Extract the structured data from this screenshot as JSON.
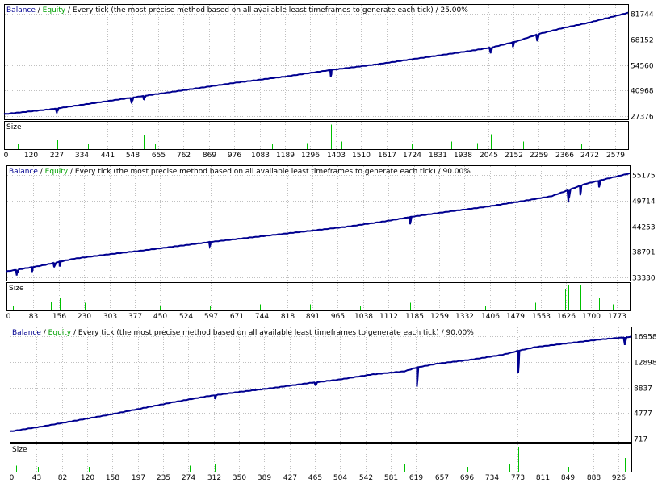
{
  "legend": {
    "balance": "Balance",
    "equity": "Equity",
    "separator": " / "
  },
  "colors": {
    "balance": "#000090",
    "equity": "#00a000",
    "size": "#00c000",
    "grid": "#c0c0c0"
  },
  "chart_data": [
    {
      "type": "line",
      "legend_text": "Every tick (the most precise method based on all available least timeframes to generate each tick) / 25.00%",
      "size_label": "Size",
      "y_ticks": [
        "81744",
        "68152",
        "54560",
        "40968",
        "27376"
      ],
      "ylim": [
        27376,
        81744
      ],
      "x_ticks": [
        "0",
        "120",
        "227",
        "334",
        "441",
        "548",
        "655",
        "762",
        "869",
        "976",
        "1083",
        "1189",
        "1296",
        "1403",
        "1510",
        "1617",
        "1724",
        "1831",
        "1938",
        "2045",
        "2152",
        "2259",
        "2366",
        "2472",
        "2579"
      ],
      "xlim": [
        0,
        2680
      ],
      "series": [
        {
          "x": [
            0,
            200,
            400,
            600,
            800,
            1000,
            1200,
            1400,
            1600,
            1800,
            2000,
            2100,
            2200,
            2300,
            2400,
            2500,
            2600,
            2680
          ],
          "values": [
            28000,
            30500,
            34000,
            37500,
            41000,
            44500,
            47500,
            51000,
            54000,
            57500,
            61000,
            63000,
            66000,
            70000,
            73000,
            75500,
            78500,
            81000
          ]
        }
      ],
      "dips": [
        {
          "x": 227,
          "depth": 2500
        },
        {
          "x": 548,
          "depth": 3000
        },
        {
          "x": 600,
          "depth": 2000
        },
        {
          "x": 1403,
          "depth": 3500
        },
        {
          "x": 2090,
          "depth": 3000
        },
        {
          "x": 2185,
          "depth": 2500
        },
        {
          "x": 2290,
          "depth": 3500
        }
      ],
      "size_bars": [
        {
          "x": 60,
          "h": 0.2
        },
        {
          "x": 230,
          "h": 0.35
        },
        {
          "x": 360,
          "h": 0.2
        },
        {
          "x": 441,
          "h": 0.25
        },
        {
          "x": 530,
          "h": 0.95
        },
        {
          "x": 548,
          "h": 0.3
        },
        {
          "x": 600,
          "h": 0.55
        },
        {
          "x": 650,
          "h": 0.2
        },
        {
          "x": 870,
          "h": 0.2
        },
        {
          "x": 1000,
          "h": 0.25
        },
        {
          "x": 1150,
          "h": 0.2
        },
        {
          "x": 1270,
          "h": 0.35
        },
        {
          "x": 1300,
          "h": 0.25
        },
        {
          "x": 1403,
          "h": 0.98
        },
        {
          "x": 1450,
          "h": 0.3
        },
        {
          "x": 1750,
          "h": 0.2
        },
        {
          "x": 1920,
          "h": 0.3
        },
        {
          "x": 2030,
          "h": 0.25
        },
        {
          "x": 2090,
          "h": 0.6
        },
        {
          "x": 2185,
          "h": 1.0
        },
        {
          "x": 2230,
          "h": 0.3
        },
        {
          "x": 2290,
          "h": 0.85
        },
        {
          "x": 2480,
          "h": 0.2
        }
      ]
    },
    {
      "type": "line",
      "legend_text": "Every tick (the most precise method based on all available least timeframes to generate each tick) / 90.00%",
      "size_label": "Size",
      "y_ticks": [
        "55175",
        "49714",
        "44253",
        "38791",
        "33330"
      ],
      "ylim": [
        33330,
        55175
      ],
      "x_ticks": [
        "0",
        "83",
        "156",
        "230",
        "303",
        "377",
        "450",
        "524",
        "597",
        "671",
        "744",
        "818",
        "891",
        "965",
        "1038",
        "1112",
        "1185",
        "1259",
        "1332",
        "1406",
        "1479",
        "1553",
        "1626",
        "1700",
        "1773"
      ],
      "xlim": [
        0,
        1830
      ],
      "series": [
        {
          "x": [
            0,
            100,
            200,
            300,
            400,
            500,
            600,
            700,
            800,
            900,
            1000,
            1100,
            1200,
            1300,
            1400,
            1500,
            1600,
            1700,
            1830
          ],
          "values": [
            34400,
            35600,
            37100,
            38000,
            38800,
            39700,
            40600,
            41400,
            42200,
            43000,
            43800,
            44800,
            46000,
            47000,
            47900,
            49000,
            50200,
            52800,
            55000
          ]
        }
      ],
      "dips": [
        {
          "x": 30,
          "depth": 1200
        },
        {
          "x": 75,
          "depth": 1000
        },
        {
          "x": 140,
          "depth": 900
        },
        {
          "x": 156,
          "depth": 1000
        },
        {
          "x": 597,
          "depth": 900
        },
        {
          "x": 1185,
          "depth": 1500
        },
        {
          "x": 1650,
          "depth": 2600
        },
        {
          "x": 1685,
          "depth": 2000
        },
        {
          "x": 1740,
          "depth": 1400
        }
      ],
      "size_bars": [
        {
          "x": 20,
          "h": 0.2
        },
        {
          "x": 70,
          "h": 0.3
        },
        {
          "x": 130,
          "h": 0.35
        },
        {
          "x": 156,
          "h": 0.5
        },
        {
          "x": 230,
          "h": 0.3
        },
        {
          "x": 450,
          "h": 0.2
        },
        {
          "x": 597,
          "h": 0.2
        },
        {
          "x": 744,
          "h": 0.25
        },
        {
          "x": 891,
          "h": 0.25
        },
        {
          "x": 1038,
          "h": 0.2
        },
        {
          "x": 1185,
          "h": 0.3
        },
        {
          "x": 1406,
          "h": 0.2
        },
        {
          "x": 1553,
          "h": 0.3
        },
        {
          "x": 1640,
          "h": 0.85
        },
        {
          "x": 1650,
          "h": 1.0
        },
        {
          "x": 1685,
          "h": 1.0
        },
        {
          "x": 1740,
          "h": 0.5
        },
        {
          "x": 1780,
          "h": 0.25
        }
      ]
    },
    {
      "type": "line",
      "legend_text": "Every tick (the most precise method based on all available least timeframes to generate each tick) / 90.00%",
      "size_label": "Size",
      "y_ticks": [
        "16958",
        "12898",
        "8837",
        "4777",
        "717"
      ],
      "ylim": [
        717,
        16958
      ],
      "x_ticks": [
        "0",
        "43",
        "82",
        "120",
        "158",
        "197",
        "235",
        "274",
        "312",
        "350",
        "389",
        "427",
        "465",
        "504",
        "542",
        "581",
        "619",
        "657",
        "696",
        "734",
        "773",
        "811",
        "849",
        "888",
        "926"
      ],
      "xlim": [
        0,
        945
      ],
      "series": [
        {
          "x": [
            0,
            50,
            100,
            150,
            200,
            250,
            300,
            350,
            400,
            450,
            500,
            550,
            600,
            619,
            650,
            700,
            750,
            773,
            800,
            850,
            900,
            945
          ],
          "values": [
            1700,
            2500,
            3400,
            4300,
            5300,
            6300,
            7200,
            7900,
            8500,
            9200,
            9800,
            10600,
            11100,
            11700,
            12300,
            12900,
            13700,
            14300,
            14900,
            15500,
            16100,
            16500
          ]
        }
      ],
      "dips": [
        {
          "x": 619,
          "depth": 3000
        },
        {
          "x": 773,
          "depth": 3500
        },
        {
          "x": 935,
          "depth": 1200
        },
        {
          "x": 312,
          "depth": 600
        },
        {
          "x": 465,
          "depth": 500
        }
      ],
      "size_bars": [
        {
          "x": 10,
          "h": 0.25
        },
        {
          "x": 43,
          "h": 0.2
        },
        {
          "x": 120,
          "h": 0.2
        },
        {
          "x": 197,
          "h": 0.2
        },
        {
          "x": 274,
          "h": 0.25
        },
        {
          "x": 312,
          "h": 0.3
        },
        {
          "x": 389,
          "h": 0.2
        },
        {
          "x": 465,
          "h": 0.25
        },
        {
          "x": 542,
          "h": 0.2
        },
        {
          "x": 600,
          "h": 0.3
        },
        {
          "x": 619,
          "h": 1.0
        },
        {
          "x": 696,
          "h": 0.2
        },
        {
          "x": 760,
          "h": 0.3
        },
        {
          "x": 773,
          "h": 1.0
        },
        {
          "x": 849,
          "h": 0.2
        },
        {
          "x": 935,
          "h": 0.55
        }
      ]
    }
  ]
}
